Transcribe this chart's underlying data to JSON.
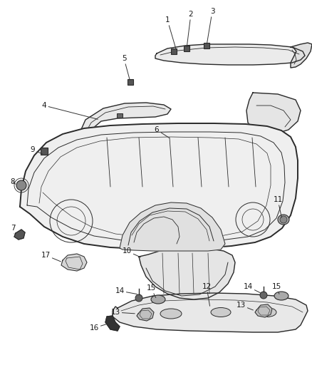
{
  "background_color": "#ffffff",
  "line_color": "#2a2a2a",
  "label_color": "#1a1a1a",
  "fig_width": 4.38,
  "fig_height": 5.33,
  "dpi": 100
}
